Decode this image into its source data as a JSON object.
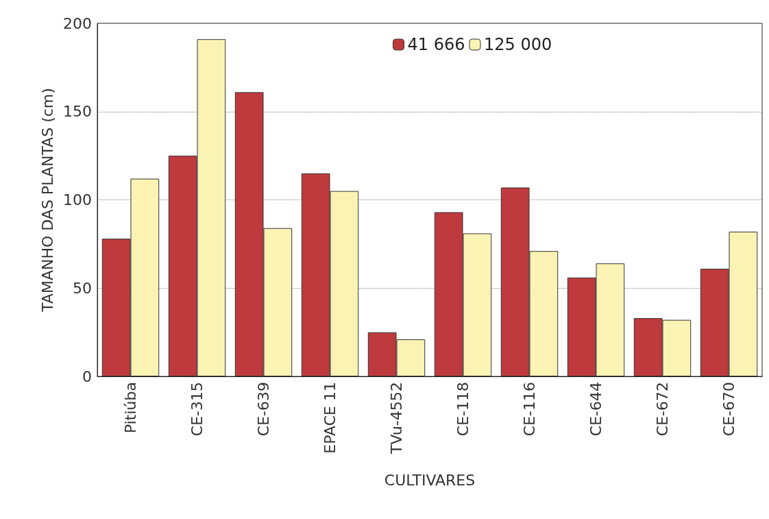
{
  "chart_data": {
    "type": "bar",
    "xlabel": "CULTIVARES",
    "ylabel": "TAMANHO DAS PLANTAS (cm)",
    "categories": [
      "Pitiúba",
      "CE-315",
      "CE-639",
      "EPACE 11",
      "TVu-4552",
      "CE-118",
      "CE-116",
      "CE-644",
      "CE-672",
      "CE-670"
    ],
    "series": [
      {
        "name": "41 666",
        "color": "#bf3a3c",
        "values": [
          78,
          125,
          161,
          115,
          25,
          93,
          107,
          56,
          33,
          61
        ]
      },
      {
        "name": "125 000",
        "color": "#fbf3b4",
        "values": [
          112,
          191,
          84,
          105,
          21,
          81,
          71,
          64,
          32,
          82
        ]
      }
    ],
    "ylim": [
      0,
      200
    ],
    "yticks": [
      0,
      50,
      100,
      150,
      200
    ],
    "grid": "y",
    "legend": "top"
  }
}
